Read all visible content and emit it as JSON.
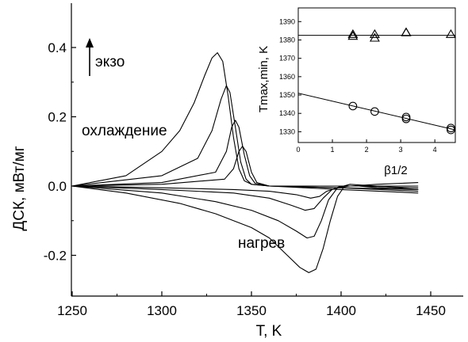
{
  "chart_data": [
    {
      "type": "line",
      "xlabel": "T, K",
      "ylabel": "ДСК, мВт/мг",
      "xlim": [
        1250,
        1450
      ],
      "ylim": [
        -0.28,
        0.45
      ],
      "xticks": [
        1250,
        1300,
        1350,
        1400,
        1450
      ],
      "yticks": [
        0.4,
        0.2,
        0.0,
        -0.2
      ],
      "xtick_labels": [
        "1250",
        "1300",
        "1350",
        "1400",
        "1450"
      ],
      "ytick_labels": [
        "0.4",
        "0.2",
        "0.0",
        "-0.2"
      ],
      "annotations": [
        "экзо",
        "охлаждение",
        "нагрев"
      ],
      "grid": false,
      "series": [
        {
          "x": [
            1250,
            1280,
            1300,
            1310,
            1318,
            1324,
            1328,
            1331,
            1334,
            1337,
            1340,
            1343,
            1346,
            1350,
            1360,
            1380,
            1400,
            1443
          ],
          "values": [
            0.0,
            0.03,
            0.1,
            0.16,
            0.24,
            0.32,
            0.37,
            0.385,
            0.36,
            0.26,
            0.14,
            0.05,
            0.015,
            0.005,
            0.0,
            -0.005,
            -0.01,
            -0.02
          ]
        },
        {
          "x": [
            1250,
            1300,
            1320,
            1328,
            1333,
            1336,
            1338,
            1341,
            1344,
            1347,
            1350,
            1360,
            1400,
            1443
          ],
          "values": [
            0.0,
            0.03,
            0.08,
            0.16,
            0.25,
            0.29,
            0.27,
            0.17,
            0.07,
            0.02,
            0.005,
            0.0,
            -0.005,
            -0.015
          ]
        },
        {
          "x": [
            1250,
            1300,
            1330,
            1336,
            1339,
            1341,
            1343,
            1346,
            1349,
            1352,
            1360,
            1400,
            1443
          ],
          "values": [
            0.0,
            0.01,
            0.04,
            0.1,
            0.17,
            0.19,
            0.17,
            0.09,
            0.03,
            0.008,
            0.0,
            -0.005,
            -0.01
          ]
        },
        {
          "x": [
            1250,
            1300,
            1335,
            1340,
            1343,
            1345,
            1347,
            1350,
            1353,
            1360,
            1400,
            1443
          ],
          "values": [
            0.0,
            0.005,
            0.02,
            0.05,
            0.1,
            0.115,
            0.1,
            0.04,
            0.01,
            0.0,
            0.0,
            0.0
          ]
        },
        {
          "x": [
            1250,
            1300,
            1340,
            1360,
            1375,
            1383,
            1388,
            1392,
            1398,
            1405,
            1420,
            1443
          ],
          "values": [
            0.0,
            -0.005,
            -0.01,
            -0.015,
            -0.025,
            -0.035,
            -0.03,
            -0.015,
            -0.005,
            0.0,
            0.005,
            0.01
          ]
        },
        {
          "x": [
            1250,
            1300,
            1340,
            1360,
            1372,
            1380,
            1385,
            1390,
            1395,
            1400,
            1410,
            1443
          ],
          "values": [
            0.0,
            -0.01,
            -0.02,
            -0.035,
            -0.055,
            -0.07,
            -0.065,
            -0.035,
            -0.01,
            0.0,
            0.0,
            -0.005
          ]
        },
        {
          "x": [
            1250,
            1300,
            1330,
            1350,
            1365,
            1375,
            1381,
            1385,
            1389,
            1393,
            1398,
            1405,
            1420,
            1443
          ],
          "values": [
            0.0,
            -0.02,
            -0.045,
            -0.07,
            -0.1,
            -0.13,
            -0.15,
            -0.145,
            -0.1,
            -0.04,
            -0.005,
            0.005,
            0.0,
            -0.01
          ]
        },
        {
          "x": [
            1250,
            1280,
            1310,
            1330,
            1350,
            1360,
            1370,
            1377,
            1382,
            1386,
            1390,
            1394,
            1398,
            1402,
            1410,
            1420,
            1443
          ],
          "values": [
            0.0,
            -0.02,
            -0.05,
            -0.08,
            -0.12,
            -0.15,
            -0.2,
            -0.235,
            -0.25,
            -0.24,
            -0.18,
            -0.1,
            -0.03,
            0.0,
            0.0,
            -0.005,
            -0.01
          ]
        }
      ]
    },
    {
      "type": "scatter",
      "xlabel": "β1/2",
      "ylabel": "Tmax,min, K",
      "xlim": [
        0,
        4.6
      ],
      "ylim": [
        1325,
        1394
      ],
      "xticks": [
        0,
        1,
        2,
        3,
        4
      ],
      "yticks": [
        1330,
        1340,
        1350,
        1360,
        1370,
        1380,
        1390
      ],
      "xtick_labels": [
        "0",
        "1",
        "2",
        "3",
        "4"
      ],
      "ytick_labels": [
        "1330",
        "1340",
        "1350",
        "1360",
        "1370",
        "1380",
        "1390"
      ],
      "grid": false,
      "series": [
        {
          "marker": "triangle",
          "x": [
            1.6,
            1.6,
            2.24,
            2.24,
            3.16,
            3.16,
            4.47
          ],
          "values": [
            1383,
            1382,
            1383,
            1381,
            1384,
            1384,
            1383
          ]
        },
        {
          "marker": "circle",
          "x": [
            1.6,
            2.24,
            3.16,
            3.16,
            4.47,
            4.47
          ],
          "values": [
            1344,
            1341,
            1338,
            1337,
            1332,
            1331
          ]
        }
      ],
      "fit_lines": [
        {
          "x": [
            0,
            4.6
          ],
          "values": [
            1382.5,
            1382.5
          ]
        },
        {
          "x": [
            0,
            4.6
          ],
          "values": [
            1351,
            1331
          ]
        }
      ]
    }
  ]
}
